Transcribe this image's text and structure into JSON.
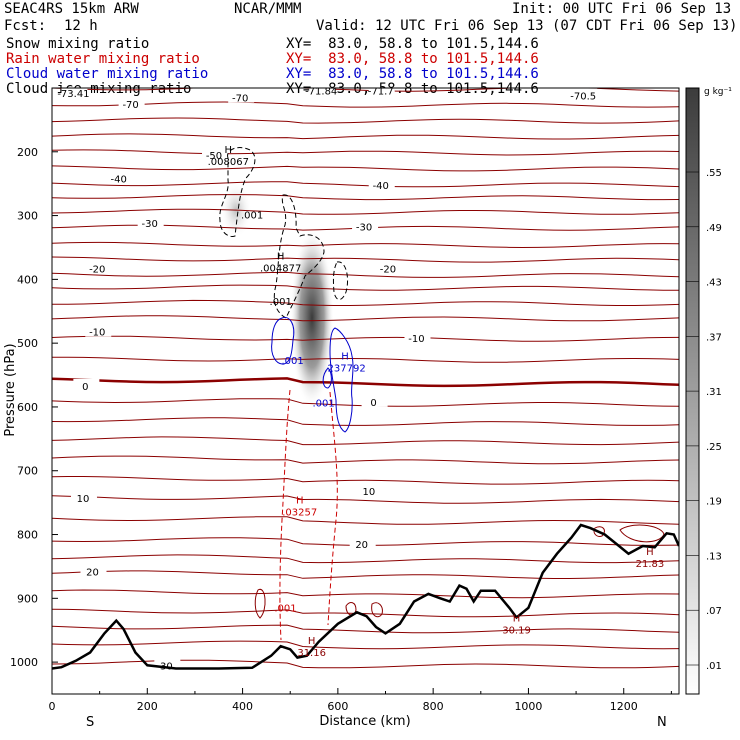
{
  "header": {
    "model": "SEAC4RS 15km ARW",
    "org": "NCAR/MMM",
    "init": "Init: 00 UTC Fri 06 Sep 13",
    "fcst_label": "Fcst:",
    "fcst_value": "12 h",
    "valid": "Valid: 12 UTC Fri 06 Sep 13 (07 CDT Fri 06 Sep 13)",
    "fields": [
      {
        "name": "Snow mixing ratio",
        "color": "#000000"
      },
      {
        "name": "Rain water mixing ratio",
        "color": "#cc0000"
      },
      {
        "name": "Cloud water mixing ratio",
        "color": "#0000cc"
      },
      {
        "name": "Cloud ice mixing ratio",
        "color": "#000000"
      }
    ],
    "xy": "XY=  83.0, 58.8 to 101.5,144.6"
  },
  "chart_data": {
    "type": "cross-section",
    "xlabel": "Distance (km)",
    "ylabel": "Pressure (hPa)",
    "xlim": [
      0,
      1316
    ],
    "ylim_hpa": [
      1050,
      100
    ],
    "x_ticks": [
      0,
      200,
      400,
      600,
      800,
      1000,
      1200
    ],
    "y_ticks": [
      200,
      300,
      400,
      500,
      600,
      700,
      800,
      900,
      1000
    ],
    "end_labels": {
      "left": "S",
      "right": "N"
    },
    "colorbar": {
      "unit": "g kg⁻¹",
      "labels": [
        ".01",
        ".07",
        ".13",
        ".19",
        ".25",
        ".31",
        ".37",
        ".43",
        ".49",
        ".55"
      ]
    },
    "temperature_labels": [
      {
        "text": "-73.41",
        "x": 45,
        "p": 108
      },
      {
        "text": "-70",
        "x": 395,
        "p": 115
      },
      {
        "text": "-70",
        "x": 165,
        "p": 125
      },
      {
        "text": "-71.84",
        "x": 565,
        "p": 104
      },
      {
        "text": "-71.7",
        "x": 690,
        "p": 104
      },
      {
        "text": "-70.5",
        "x": 1115,
        "p": 112
      },
      {
        "text": "-50",
        "x": 340,
        "p": 205
      },
      {
        "text": "-40",
        "x": 140,
        "p": 242
      },
      {
        "text": "-40",
        "x": 690,
        "p": 252
      },
      {
        "text": "-30",
        "x": 205,
        "p": 312
      },
      {
        "text": "-30",
        "x": 655,
        "p": 317
      },
      {
        "text": "-20",
        "x": 95,
        "p": 383
      },
      {
        "text": "-20",
        "x": 705,
        "p": 383
      },
      {
        "text": "-10",
        "x": 95,
        "p": 482
      },
      {
        "text": "-10",
        "x": 765,
        "p": 492
      },
      {
        "text": "0",
        "x": 70,
        "p": 567
      },
      {
        "text": "0",
        "x": 675,
        "p": 592
      },
      {
        "text": "10",
        "x": 65,
        "p": 743
      },
      {
        "text": "10",
        "x": 665,
        "p": 732
      },
      {
        "text": "20",
        "x": 85,
        "p": 858
      },
      {
        "text": "20",
        "x": 650,
        "p": 815
      },
      {
        "text": "30",
        "x": 240,
        "p": 1005
      }
    ],
    "extrema": [
      {
        "symbol": "H",
        "value": ".008067",
        "x": 370,
        "p": 208,
        "color": "#000000"
      },
      {
        "symbol": "",
        "value": ".001",
        "x": 420,
        "p": 292,
        "color": "#000000"
      },
      {
        "symbol": "H",
        "value": ".004877",
        "x": 480,
        "p": 375,
        "color": "#000000"
      },
      {
        "symbol": "",
        "value": ".001",
        "x": 480,
        "p": 428,
        "color": "#000000"
      },
      {
        "symbol": "",
        "value": ".001",
        "x": 505,
        "p": 520,
        "color": "#0000cc"
      },
      {
        "symbol": "H",
        "value": ".237792",
        "x": 615,
        "p": 532,
        "color": "#0000cc"
      },
      {
        "symbol": "",
        "value": ".001",
        "x": 570,
        "p": 587,
        "color": "#0000cc"
      },
      {
        "symbol": "H",
        "value": ".03257",
        "x": 520,
        "p": 758,
        "color": "#cc0000"
      },
      {
        "symbol": "",
        "value": ".001",
        "x": 490,
        "p": 908,
        "color": "#cc0000"
      },
      {
        "symbol": "H",
        "value": "31.16",
        "x": 545,
        "p": 978,
        "color": "#8b0000"
      },
      {
        "symbol": "H",
        "value": "30.19",
        "x": 975,
        "p": 943,
        "color": "#8b0000"
      },
      {
        "symbol": "H",
        "value": "21.83",
        "x": 1255,
        "p": 838,
        "color": "#8b0000"
      }
    ],
    "terrain": [
      [
        0,
        1010
      ],
      [
        20,
        1008
      ],
      [
        50,
        998
      ],
      [
        80,
        985
      ],
      [
        110,
        955
      ],
      [
        135,
        935
      ],
      [
        150,
        948
      ],
      [
        175,
        985
      ],
      [
        200,
        1005
      ],
      [
        260,
        1010
      ],
      [
        350,
        1010
      ],
      [
        420,
        1009
      ],
      [
        460,
        990
      ],
      [
        480,
        975
      ],
      [
        500,
        980
      ],
      [
        515,
        993
      ],
      [
        535,
        990
      ],
      [
        560,
        968
      ],
      [
        600,
        940
      ],
      [
        640,
        922
      ],
      [
        660,
        928
      ],
      [
        680,
        945
      ],
      [
        700,
        955
      ],
      [
        730,
        940
      ],
      [
        760,
        905
      ],
      [
        790,
        893
      ],
      [
        815,
        900
      ],
      [
        835,
        905
      ],
      [
        855,
        880
      ],
      [
        870,
        885
      ],
      [
        885,
        905
      ],
      [
        900,
        888
      ],
      [
        930,
        888
      ],
      [
        960,
        915
      ],
      [
        975,
        930
      ],
      [
        1000,
        915
      ],
      [
        1030,
        860
      ],
      [
        1060,
        830
      ],
      [
        1090,
        805
      ],
      [
        1110,
        785
      ],
      [
        1130,
        790
      ],
      [
        1160,
        800
      ],
      [
        1190,
        818
      ],
      [
        1210,
        830
      ],
      [
        1240,
        818
      ],
      [
        1265,
        820
      ],
      [
        1290,
        798
      ],
      [
        1305,
        800
      ],
      [
        1316,
        818
      ]
    ]
  }
}
